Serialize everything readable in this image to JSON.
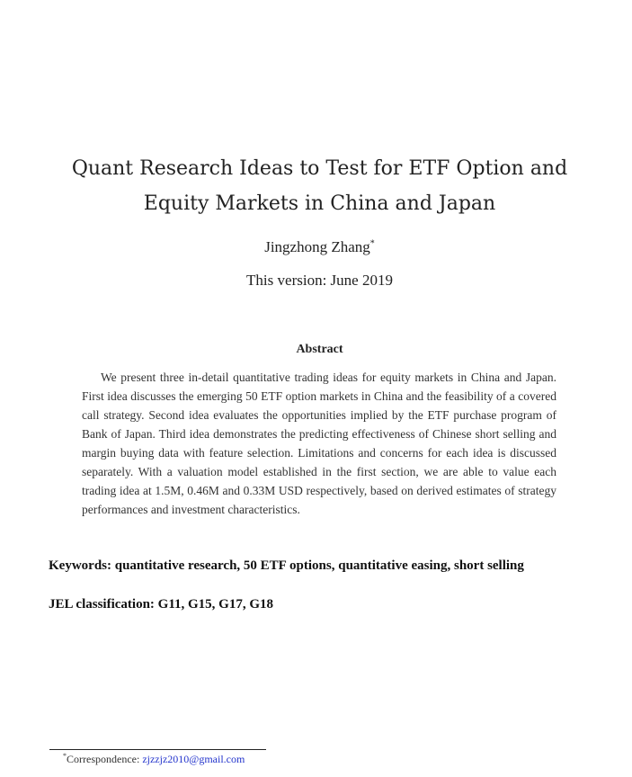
{
  "paper": {
    "title_line1": "Quant Research Ideas to Test for ETF Option and",
    "title_line2": "Equity Markets in China and Japan",
    "author": "Jingzhong Zhang",
    "author_mark": "*",
    "version": "This version:  June 2019",
    "abstract_heading": "Abstract",
    "abstract_text": "We present three in-detail quantitative trading ideas for equity markets in China and Japan. First idea discusses the emerging 50 ETF option markets in China and the feasibility of a covered call strategy. Second idea evaluates the opportunities implied by the ETF purchase program of Bank of Japan. Third idea demonstrates the predicting effectiveness of Chinese short selling and margin buying data with feature selection. Limitations and concerns for each idea is discussed separately. With a valuation model established in the first section, we are able to value each trading idea at 1.5M, 0.46M and 0.33M USD respectively, based on derived estimates of strategy performances and investment characteristics.",
    "keywords": "Keywords:  quantitative research, 50 ETF options, quantitative easing, short selling",
    "jel": "JEL classification:  G11, G15, G17, G18",
    "footnote_mark": "*",
    "footnote_label": "Correspondence: ",
    "footnote_email": "zjzzjz2010@gmail.com"
  }
}
